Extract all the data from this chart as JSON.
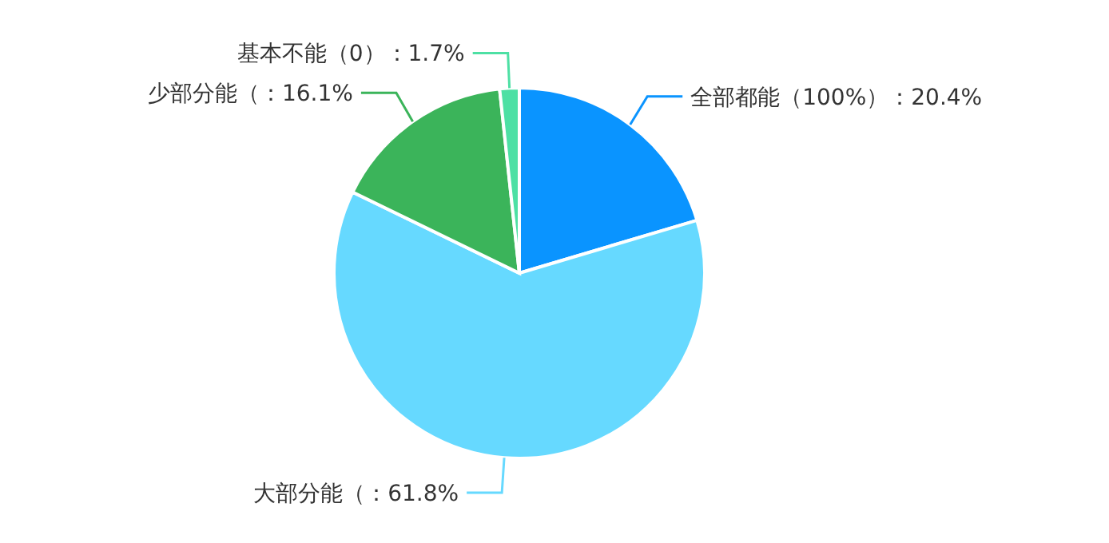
{
  "chart_data": {
    "type": "pie",
    "categories": [
      "全部都能（100%）",
      "大部分能（",
      "少部分能（",
      "基本不能（0）"
    ],
    "values": [
      20.4,
      61.8,
      16.1,
      1.7
    ],
    "value_labels": [
      "20.4%",
      "61.8%",
      "16.1%",
      "1.7%"
    ],
    "colors": [
      "#0a94ff",
      "#66d9ff",
      "#3bb45a",
      "#4de0a4"
    ]
  }
}
